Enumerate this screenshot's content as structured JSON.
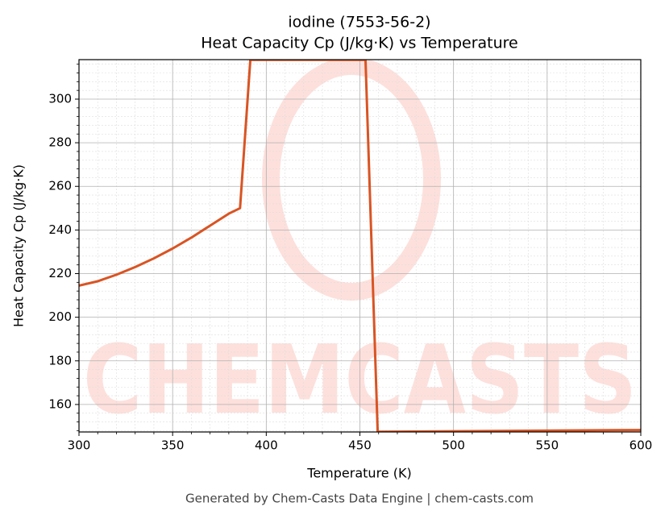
{
  "chart_data": {
    "type": "line",
    "title": "iodine (7553-56-2)",
    "subtitle": "Heat Capacity Cp (J/kg·K) vs Temperature",
    "x_label": "Temperature (K)",
    "y_label": "Heat Capacity Cp (J/kg·K)",
    "footer": "Generated by Chem-Casts Data Engine | chem-casts.com",
    "watermark": "CHEMCASTS",
    "x": [
      300,
      310,
      320,
      330,
      340,
      350,
      360,
      370,
      380,
      386,
      391.5,
      453,
      459.5,
      600
    ],
    "series": [
      {
        "name": "Cp",
        "color": "#d95423",
        "values": [
          214.5,
          216.5,
          219.5,
          223,
          227,
          231.5,
          236.5,
          242,
          247.5,
          250,
          318,
          318,
          147.5,
          148.3
        ]
      }
    ],
    "xlim": [
      300,
      600
    ],
    "ylim": [
      147.4,
      318.1
    ],
    "xticks": [
      300,
      350,
      400,
      450,
      500,
      550,
      600
    ],
    "yticks": [
      160,
      180,
      200,
      220,
      240,
      260,
      280,
      300
    ],
    "minor_xticks": [
      310,
      320,
      330,
      340,
      360,
      370,
      380,
      390,
      410,
      420,
      430,
      440,
      460,
      470,
      480,
      490,
      510,
      520,
      530,
      540,
      560,
      570,
      580,
      590
    ],
    "minor_yticks": [
      148,
      152,
      156,
      164,
      168,
      172,
      176,
      184,
      188,
      192,
      196,
      204,
      208,
      212,
      216,
      224,
      228,
      232,
      236,
      244,
      248,
      252,
      256,
      264,
      268,
      272,
      276,
      284,
      288,
      292,
      296,
      304,
      308,
      312,
      316
    ],
    "grid": true
  }
}
